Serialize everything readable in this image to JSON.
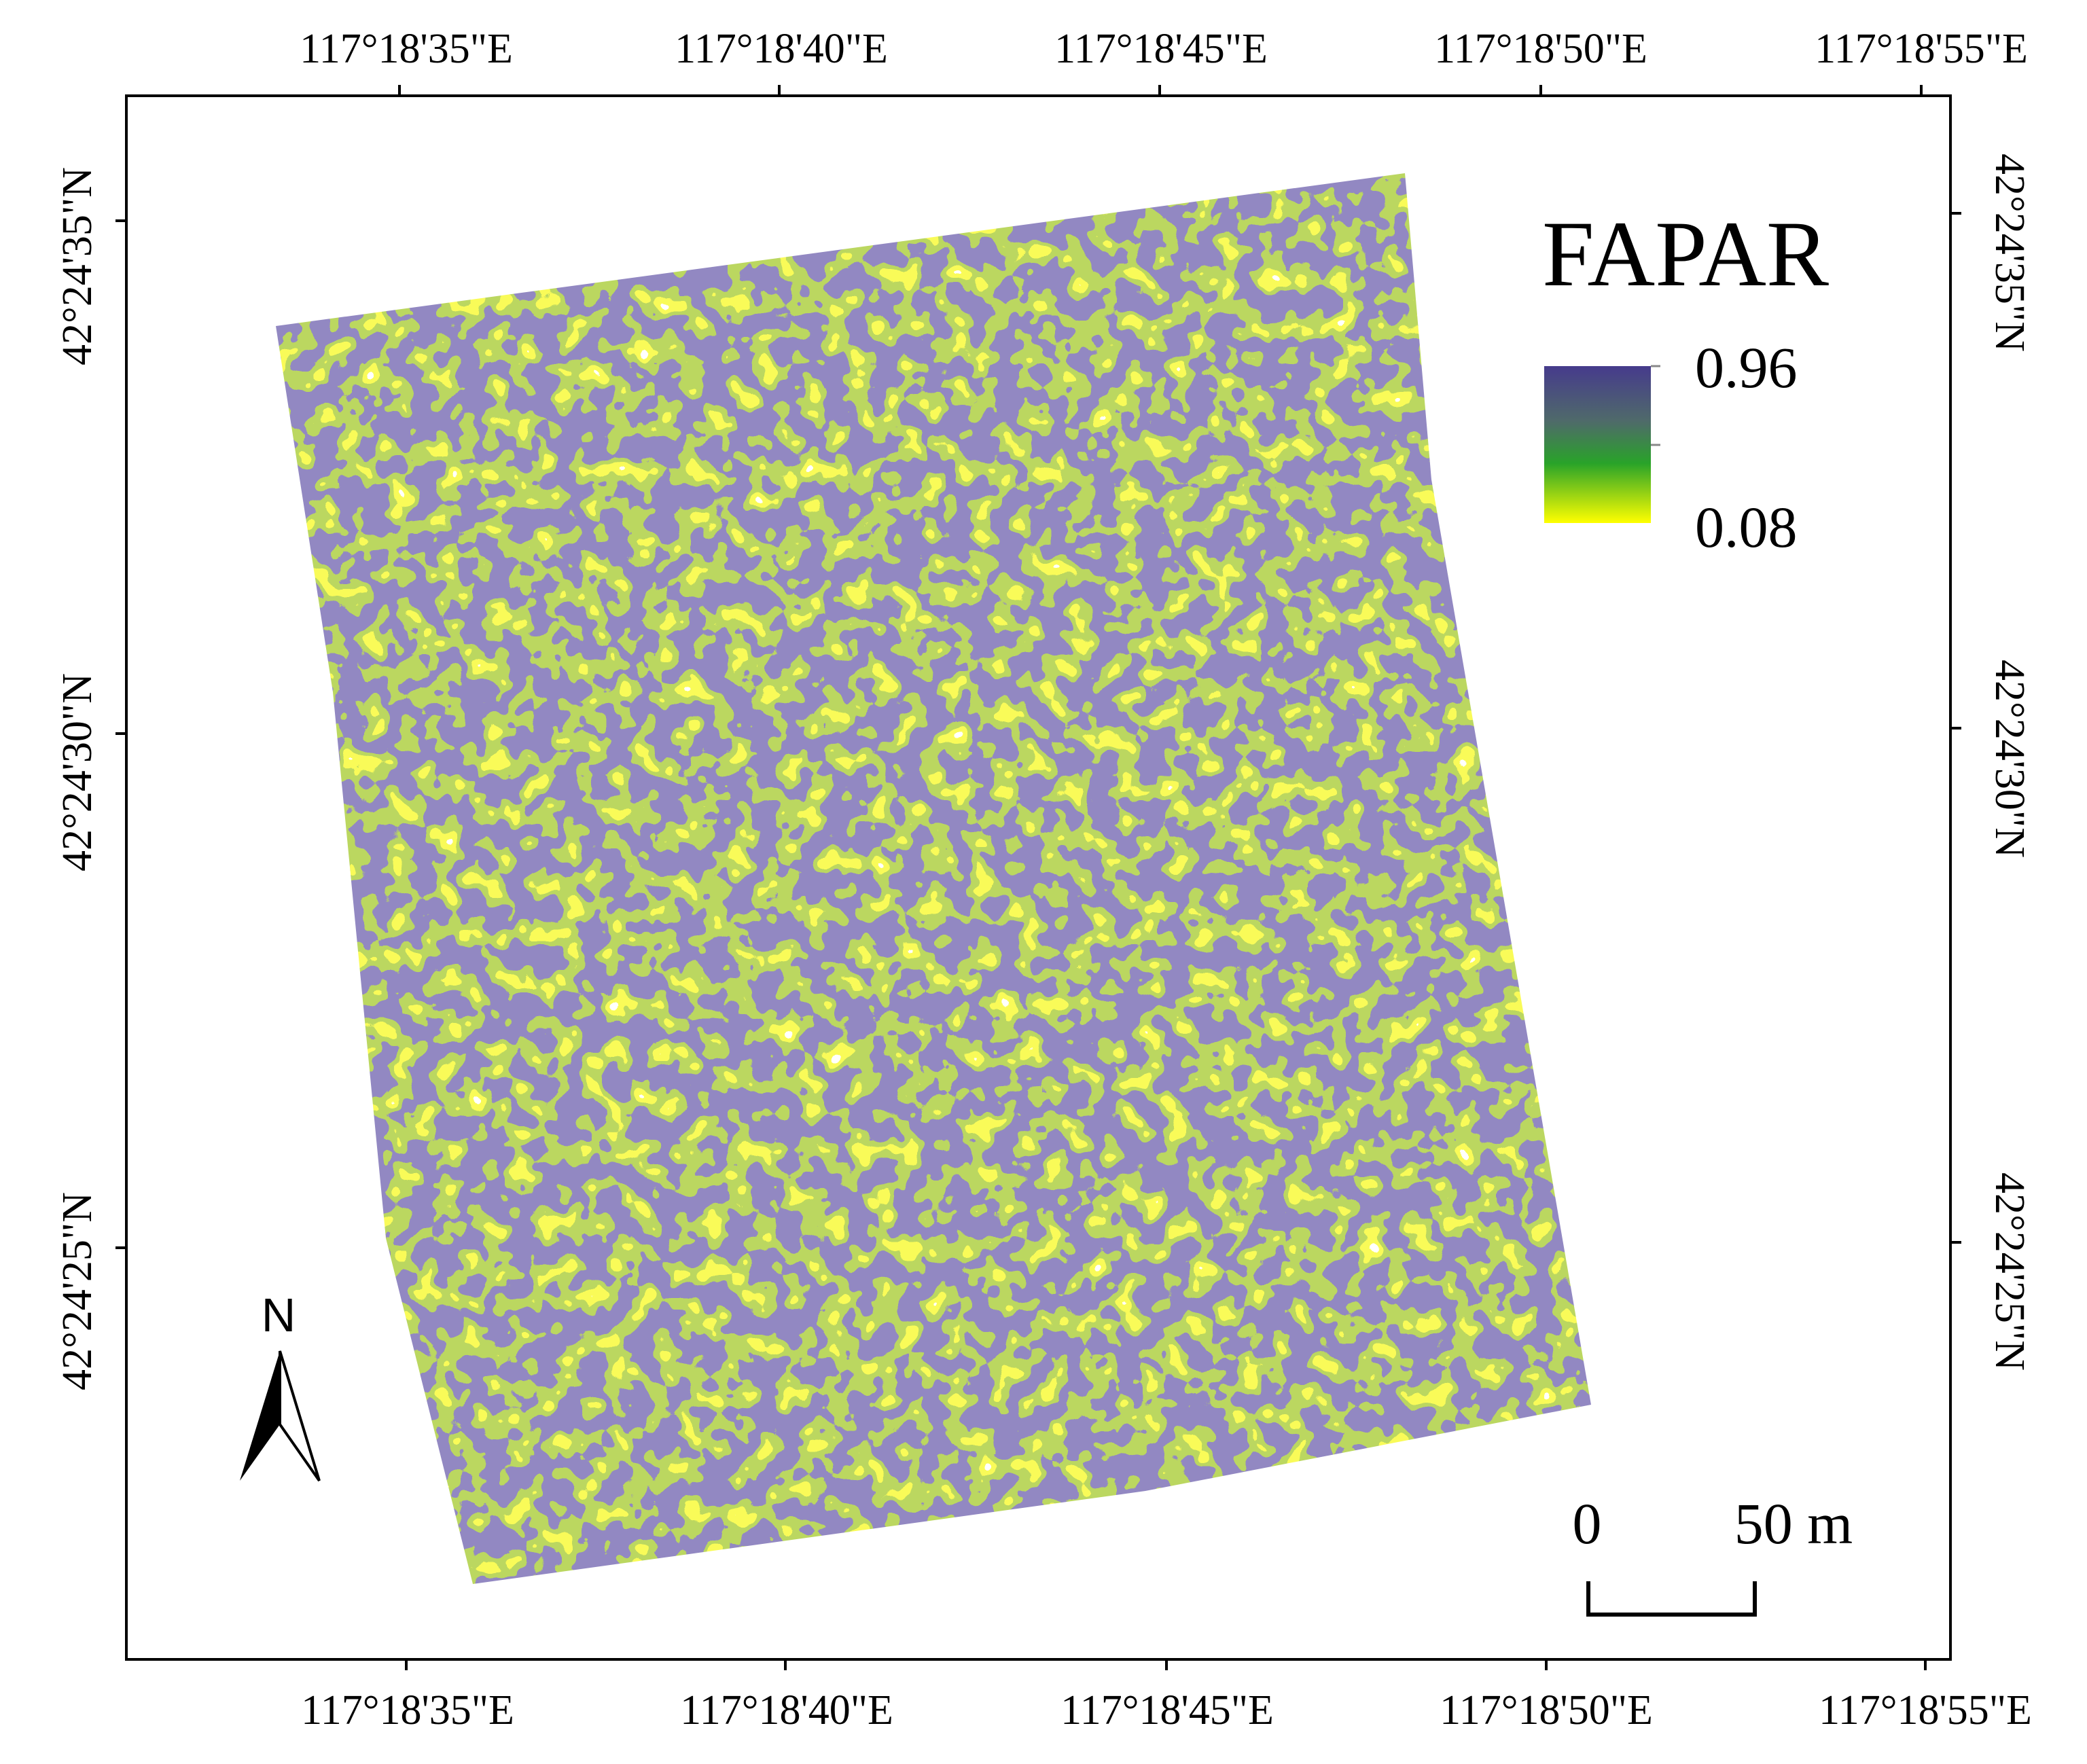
{
  "map": {
    "legend": {
      "title": "FAPAR",
      "max_label": "0.96",
      "min_label": "0.08"
    },
    "top_longitudes": [
      "117°18'35\"E",
      "117°18'40\"E",
      "117°18'45\"E",
      "117°18'50\"E",
      "117°18'55\"E"
    ],
    "bottom_longitudes": [
      "117°18'35\"E",
      "117°18'40\"E",
      "117°18'45\"E",
      "117°18'50\"E",
      "117°18'55\"E"
    ],
    "left_latitudes": [
      "42°24'35\"N",
      "42°24'30\"N",
      "42°24'25\"N"
    ],
    "right_latitudes": [
      "42°24'35\"N",
      "42°24'30\"N",
      "42°24'25\"N"
    ],
    "north_arrow": "N",
    "scale_bar": {
      "start": "0",
      "end": "50 m"
    }
  }
}
